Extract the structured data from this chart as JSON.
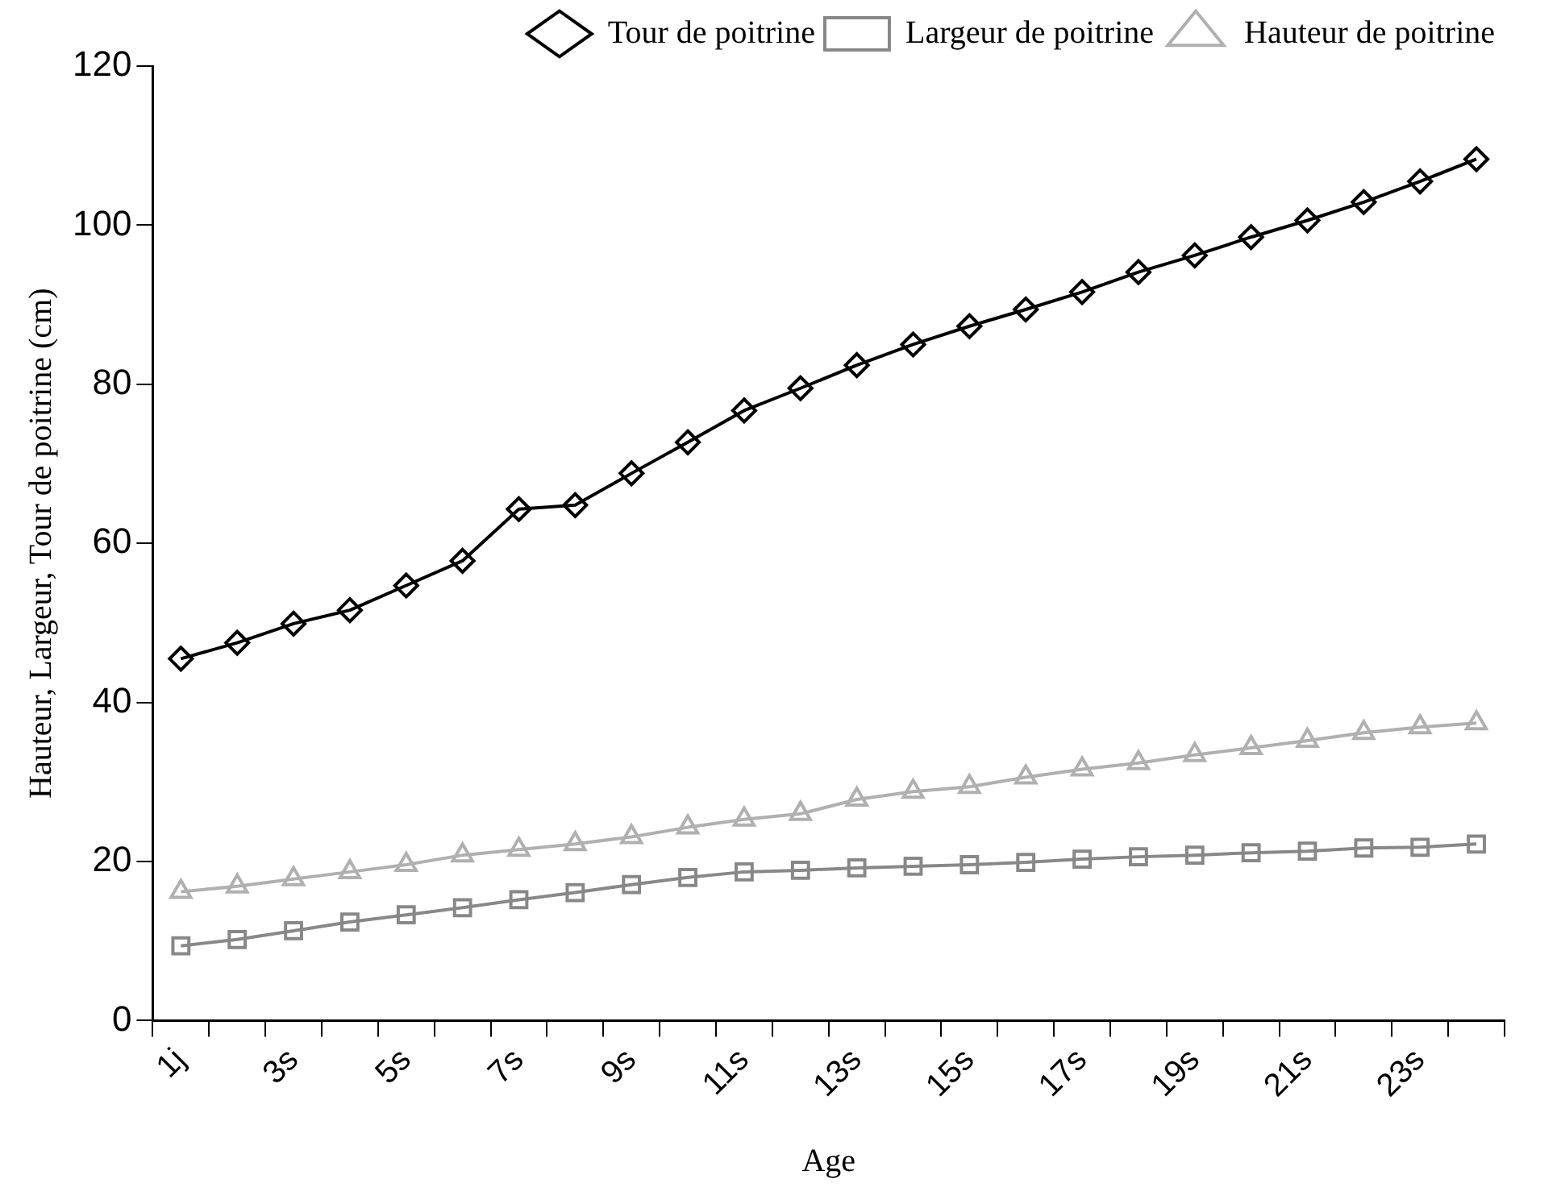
{
  "chart_data": {
    "type": "line",
    "xlabel": "Age",
    "ylabel": "Hauteur, Largeur, Tour de poitrine (cm)",
    "categories": [
      "1j",
      null,
      "3s",
      null,
      "5s",
      null,
      "7s",
      null,
      "9s",
      null,
      "11s",
      null,
      "13s",
      null,
      "15s",
      null,
      "17s",
      null,
      "19s",
      null,
      "21s",
      null,
      "23s",
      null
    ],
    "series": [
      {
        "name": "Tour de poitrine",
        "color": "#000000",
        "marker": "diamond",
        "values": [
          45.5,
          47.5,
          49.9,
          51.6,
          54.7,
          57.8,
          64.3,
          64.8,
          68.8,
          72.7,
          76.7,
          79.5,
          82.4,
          85.0,
          87.3,
          89.4,
          91.6,
          94.1,
          96.2,
          98.5,
          100.6,
          102.9,
          105.5,
          108.3
        ]
      },
      {
        "name": "Largeur de poitrine",
        "color": "#888888",
        "marker": "square",
        "values": [
          9.4,
          10.2,
          11.3,
          12.4,
          13.3,
          14.2,
          15.2,
          16.1,
          17.1,
          18.0,
          18.7,
          18.9,
          19.2,
          19.4,
          19.6,
          19.9,
          20.3,
          20.6,
          20.8,
          21.1,
          21.3,
          21.7,
          21.8,
          22.2
        ]
      },
      {
        "name": "Hauteur de poitrine",
        "color": "#b0b0b0",
        "marker": "triangle",
        "values": [
          16.2,
          16.9,
          17.8,
          18.7,
          19.6,
          20.8,
          21.5,
          22.2,
          23.1,
          24.3,
          25.3,
          26.0,
          27.8,
          28.8,
          29.4,
          30.6,
          31.6,
          32.4,
          33.4,
          34.3,
          35.2,
          36.2,
          36.9,
          37.4
        ]
      }
    ],
    "ylim": [
      0,
      120
    ],
    "yticks": [
      0,
      20,
      40,
      60,
      80,
      100,
      120
    ],
    "grid": false,
    "legend": "top",
    "line_style": "solid"
  }
}
